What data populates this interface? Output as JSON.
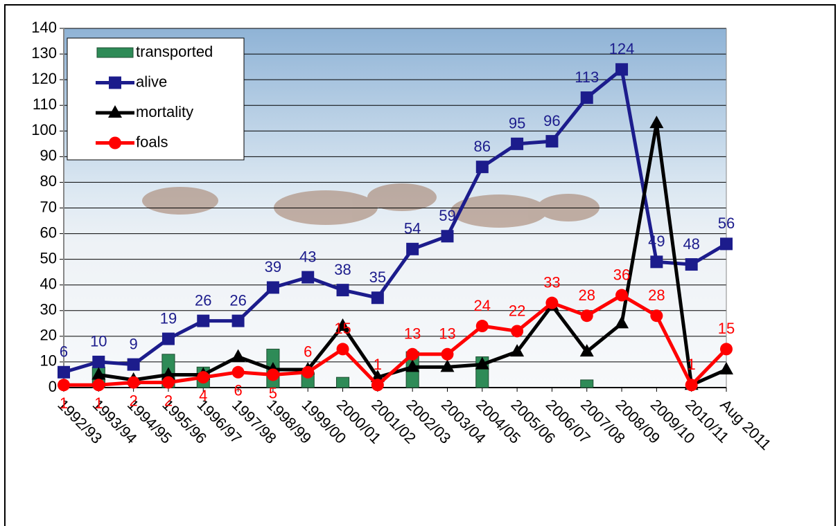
{
  "chart_data": {
    "type": "line",
    "categories": [
      "1992/93",
      "1993/94",
      "1994/95",
      "1995/96",
      "1996/97",
      "1997/98",
      "1998/99",
      "1999/00",
      "2000/01",
      "2001/02",
      "2002/03",
      "2003/04",
      "2004/05",
      "2005/06",
      "2006/07",
      "2007/08",
      "2008/09",
      "2009/10",
      "2010/11",
      "Aug 2011"
    ],
    "series": [
      {
        "name": "transported",
        "type": "bar",
        "color": "#2e8b57",
        "values": [
          null,
          8,
          null,
          13,
          8,
          null,
          15,
          6,
          4,
          null,
          14,
          null,
          12,
          null,
          null,
          3,
          null,
          null,
          null,
          null
        ]
      },
      {
        "name": "alive",
        "color": "#1c1c8c",
        "marker": "square",
        "labels": true,
        "values": [
          6,
          10,
          9,
          19,
          26,
          26,
          39,
          43,
          38,
          35,
          54,
          59,
          86,
          95,
          96,
          113,
          124,
          49,
          48,
          56
        ]
      },
      {
        "name": "mortality",
        "color": "#000000",
        "marker": "triangle",
        "values": [
          null,
          5,
          3,
          5,
          5,
          12,
          7,
          7,
          24,
          4,
          8,
          8,
          9,
          14,
          32,
          14,
          25,
          103,
          1,
          7
        ]
      },
      {
        "name": "foals",
        "color": "#ff0000",
        "marker": "circle",
        "labels": true,
        "values": [
          1,
          1,
          2,
          2,
          4,
          6,
          5,
          6,
          15,
          1,
          13,
          13,
          24,
          22,
          33,
          28,
          36,
          28,
          1,
          15
        ]
      }
    ],
    "ylim": [
      0,
      140
    ],
    "yticks": [
      0,
      10,
      20,
      30,
      40,
      50,
      60,
      70,
      80,
      90,
      100,
      110,
      120,
      130,
      140
    ],
    "grid": true,
    "legend": "upper left"
  }
}
